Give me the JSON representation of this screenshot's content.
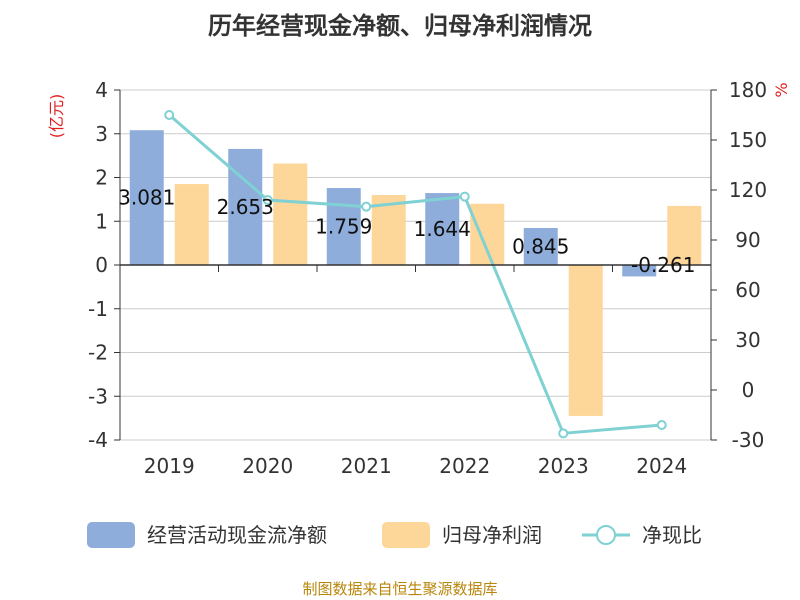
{
  "chart_data": {
    "type": "bar",
    "title": "历年经营现金净额、归母净利润情况",
    "categories": [
      "2019",
      "2020",
      "2021",
      "2022",
      "2023",
      "2024"
    ],
    "y_left": {
      "unit": "(亿元)",
      "ticks": [
        "4",
        "3",
        "2",
        "1",
        "0",
        "-1",
        "-2",
        "-3",
        "-4"
      ],
      "ylim": [
        -4,
        4
      ]
    },
    "y_right": {
      "unit": "%",
      "ticks": [
        "180",
        "150",
        "120",
        "90",
        "60",
        "30",
        "0",
        "-30"
      ],
      "ylim": [
        -30,
        180
      ]
    },
    "series": [
      {
        "name": "经营活动现金流净额",
        "type": "bar",
        "axis": "left",
        "color": "#8eaddb",
        "values": [
          3.081,
          2.653,
          1.759,
          1.644,
          0.845,
          -0.261
        ],
        "labels": [
          "3.081",
          "2.653",
          "1.759",
          "1.644",
          "0.845",
          "-0.261"
        ]
      },
      {
        "name": "归母净利润",
        "type": "bar",
        "axis": "left",
        "color": "#fdd699",
        "values": [
          1.85,
          2.32,
          1.6,
          1.4,
          -3.45,
          1.35
        ]
      },
      {
        "name": "净现比",
        "type": "line",
        "axis": "right",
        "color": "#7fd1d3",
        "values": [
          165,
          114,
          110,
          116,
          -26,
          -21
        ]
      }
    ],
    "grid": true,
    "legend": "bottom"
  },
  "footer": {
    "source": "制图数据来自恒生聚源数据库"
  }
}
